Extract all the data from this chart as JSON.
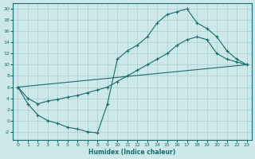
{
  "xlabel": "Humidex (Indice chaleur)",
  "xlim": [
    -0.5,
    23.5
  ],
  "ylim": [
    -3.5,
    21
  ],
  "xticks": [
    0,
    1,
    2,
    3,
    4,
    5,
    6,
    7,
    8,
    9,
    10,
    11,
    12,
    13,
    14,
    15,
    16,
    17,
    18,
    19,
    20,
    21,
    22,
    23
  ],
  "yticks": [
    -2,
    0,
    2,
    4,
    6,
    8,
    10,
    12,
    14,
    16,
    18,
    20
  ],
  "bg_color": "#cce8e8",
  "grid_color": "#aacfcf",
  "line_color": "#1a6b6b",
  "line1_x": [
    0,
    1,
    2,
    3,
    4,
    5,
    6,
    7,
    8,
    9,
    10,
    11,
    12,
    13,
    14,
    15,
    16,
    17,
    18,
    19,
    20,
    21,
    22,
    23
  ],
  "line1_y": [
    6,
    3,
    1,
    0,
    -0.5,
    -1.2,
    -1.5,
    -2,
    -2.2,
    3,
    11,
    12.5,
    13.5,
    15,
    17.5,
    19,
    19.5,
    20,
    17.5,
    16.5,
    15,
    12.5,
    11,
    10
  ],
  "line2_x": [
    0,
    1,
    2,
    3,
    4,
    5,
    6,
    7,
    8,
    9,
    10,
    11,
    12,
    13,
    14,
    15,
    16,
    17,
    18,
    19,
    20,
    21,
    22,
    23
  ],
  "line2_y": [
    6,
    4,
    3,
    3.5,
    3.8,
    4.2,
    4.5,
    5,
    5.5,
    6,
    7,
    8,
    9,
    10,
    11,
    12,
    13.5,
    14.5,
    15,
    14.5,
    12,
    11,
    10.5,
    10
  ],
  "line3_x": [
    0,
    23
  ],
  "line3_y": [
    6,
    10
  ]
}
